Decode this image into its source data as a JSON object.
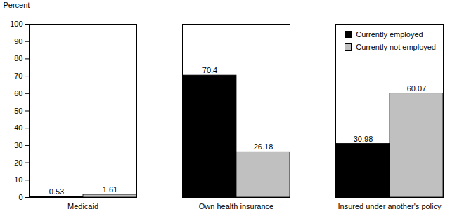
{
  "chart_data": {
    "type": "bar",
    "y_label": "Percent",
    "categories": [
      "Medicaid",
      "Own health insurance",
      "Insured under another's policy"
    ],
    "series": [
      {
        "name": "Currently employed",
        "color": "#000000",
        "values": [
          0.53,
          70.4,
          30.98
        ]
      },
      {
        "name": "Currently not employed",
        "color": "#c0c0c0",
        "values": [
          1.61,
          26.18,
          60.07
        ]
      }
    ],
    "ylim": [
      0,
      100
    ],
    "yticks": [
      0,
      10,
      20,
      30,
      40,
      50,
      60,
      70,
      80,
      90,
      100
    ],
    "grid": false,
    "legend": "top-right",
    "data_labels": true
  }
}
